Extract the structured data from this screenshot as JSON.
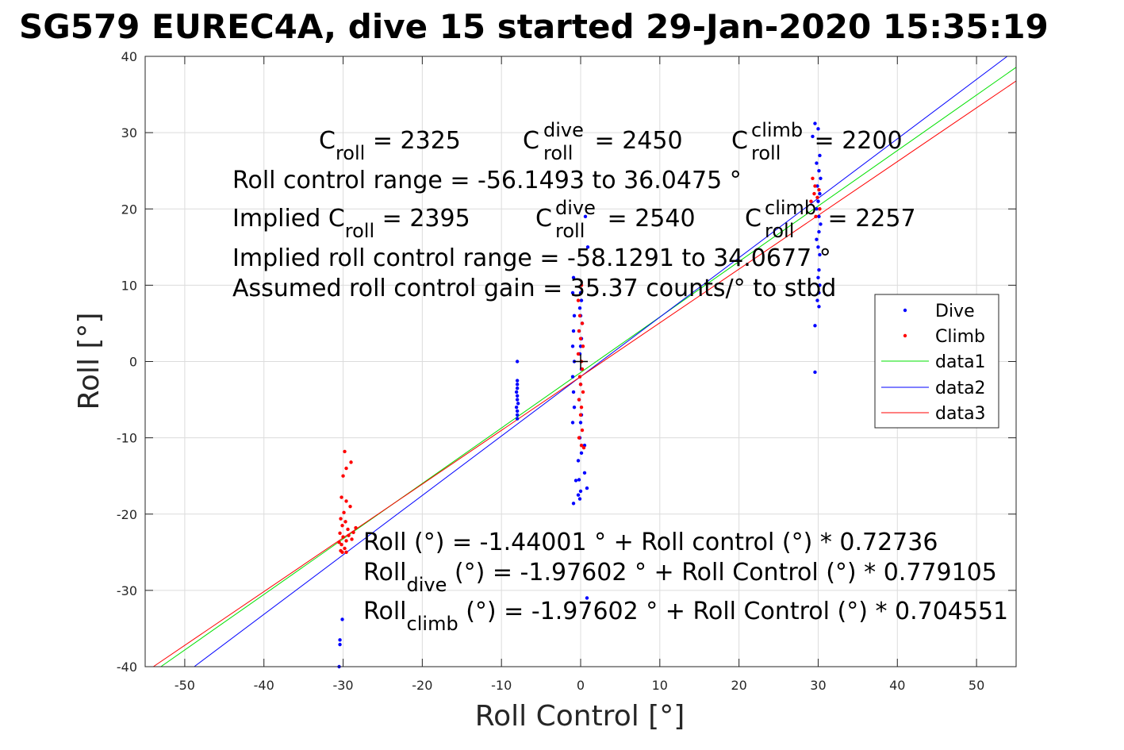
{
  "chart_data": {
    "type": "scatter",
    "title": "SG579 EUREC4A, dive 15 started 29-Jan-2020 15:35:19",
    "xlabel": "Roll Control [°]",
    "ylabel": "Roll [°]",
    "xlim": [
      -55,
      55
    ],
    "ylim": [
      -40,
      40
    ],
    "xticks": [
      -50,
      -40,
      -30,
      -20,
      -10,
      0,
      10,
      20,
      30,
      40,
      50
    ],
    "yticks": [
      -40,
      -30,
      -20,
      -10,
      0,
      10,
      20,
      30,
      40
    ],
    "grid": true,
    "legend_position": "right",
    "annotations": {
      "c_roll": {
        "pre": "C",
        "sub": "roll",
        "post": " = 2325"
      },
      "c_roll_dive": {
        "pre": "C",
        "sup": "dive",
        "sub": "roll",
        "post": " = 2450"
      },
      "c_roll_climb": {
        "pre": "C",
        "sup": "climb",
        "sub": "roll",
        "post": " = 2200"
      },
      "range": "Roll control range = -56.1493 to 36.0475 °",
      "implied_c_roll": {
        "pre": "Implied C",
        "sub": "roll",
        "post": " = 2395"
      },
      "implied_c_roll_dive": {
        "pre": "C",
        "sup": "dive",
        "sub": "roll",
        "post": " = 2540"
      },
      "implied_c_roll_climb": {
        "pre": "C",
        "sup": "climb",
        "sub": "roll",
        "post": " = 2257"
      },
      "implied_range": "Implied roll control range = -58.1291 to 34.0677 °",
      "gain": "Assumed roll control gain = 35.37 counts/° to stbd",
      "fit_all": "Roll (°) = -1.44001 ° + Roll control (°) * 0.72736",
      "fit_dive": {
        "pre": "Roll",
        "sub": "dive",
        "post": " (°) = -1.97602 ° + Roll Control (°) * 0.779105"
      },
      "fit_climb": {
        "pre": "Roll",
        "sub": "climb",
        "post": " (°) = -1.97602 ° + Roll Control (°) * 0.704551"
      }
    },
    "lines": [
      {
        "name": "data1",
        "color": "#00e000",
        "intercept": -1.44001,
        "slope": 0.72736
      },
      {
        "name": "data2",
        "color": "#0000ff",
        "intercept": -1.97602,
        "slope": 0.779105
      },
      {
        "name": "data3",
        "color": "#ff0000",
        "intercept": -1.97602,
        "slope": 0.704551
      }
    ],
    "series": [
      {
        "name": "Dive",
        "color": "#0000ff",
        "points": [
          [
            -30.1,
            -33.8
          ],
          [
            -30.4,
            -36.5
          ],
          [
            -30.4,
            -37.1
          ],
          [
            -30.5,
            -40.0
          ],
          [
            -8.0,
            0.0
          ],
          [
            -8.0,
            -2.5
          ],
          [
            -8.0,
            -3.0
          ],
          [
            -8.0,
            -3.5
          ],
          [
            -8.1,
            -4.0
          ],
          [
            -8.0,
            -4.5
          ],
          [
            -8.0,
            -5.0
          ],
          [
            -7.9,
            -5.5
          ],
          [
            -8.1,
            -6.0
          ],
          [
            -8.0,
            -6.5
          ],
          [
            -8.0,
            -7.0
          ],
          [
            -8.0,
            -7.5
          ],
          [
            -0.9,
            11.0
          ],
          [
            -1.0,
            9.0
          ],
          [
            -0.8,
            6.0
          ],
          [
            -0.9,
            4.0
          ],
          [
            -1.0,
            2.0
          ],
          [
            -0.8,
            0.0
          ],
          [
            -1.0,
            -2.0
          ],
          [
            -0.9,
            -4.0
          ],
          [
            -0.8,
            -6.0
          ],
          [
            -1.0,
            -8.0
          ],
          [
            0.0,
            9.0
          ],
          [
            0.1,
            8.0
          ],
          [
            -0.1,
            7.0
          ],
          [
            0.0,
            6.0
          ],
          [
            0.2,
            5.0
          ],
          [
            -0.2,
            4.0
          ],
          [
            0.1,
            3.0
          ],
          [
            0.0,
            2.0
          ],
          [
            -0.1,
            1.0
          ],
          [
            0.1,
            -1.0
          ],
          [
            0.0,
            -3.0
          ],
          [
            -0.2,
            -5.0
          ],
          [
            0.1,
            -7.0
          ],
          [
            0.0,
            -8.0
          ],
          [
            -0.1,
            -10.0
          ],
          [
            0.1,
            -12.0
          ],
          [
            -0.3,
            -13.0
          ],
          [
            -0.2,
            -15.5
          ],
          [
            0.0,
            -17.0
          ],
          [
            -0.1,
            -18.0
          ],
          [
            -0.9,
            -18.6
          ],
          [
            -0.3,
            -17.5
          ],
          [
            0.8,
            -16.6
          ],
          [
            0.5,
            -14.6
          ],
          [
            -0.6,
            -15.6
          ],
          [
            0.5,
            -11.0
          ],
          [
            0.9,
            15.0
          ],
          [
            0.6,
            19.0
          ],
          [
            0.8,
            -31.0
          ],
          [
            29.6,
            31.2
          ],
          [
            30.0,
            30.5
          ],
          [
            29.3,
            29.5
          ],
          [
            30.2,
            27.0
          ],
          [
            29.8,
            26.0
          ],
          [
            30.1,
            25.0
          ],
          [
            30.3,
            24.0
          ],
          [
            29.9,
            23.0
          ],
          [
            30.2,
            22.0
          ],
          [
            30.0,
            21.0
          ],
          [
            29.8,
            20.0
          ],
          [
            30.1,
            19.0
          ],
          [
            30.3,
            18.0
          ],
          [
            30.1,
            17.0
          ],
          [
            29.8,
            16.0
          ],
          [
            30.0,
            15.0
          ],
          [
            30.2,
            14.0
          ],
          [
            30.1,
            12.0
          ],
          [
            30.0,
            11.0
          ],
          [
            30.2,
            10.0
          ],
          [
            30.1,
            9.0
          ],
          [
            29.9,
            8.0
          ],
          [
            30.1,
            7.2
          ],
          [
            29.6,
            4.7
          ],
          [
            29.6,
            -1.4
          ]
        ]
      },
      {
        "name": "Climb",
        "color": "#ff0000",
        "points": [
          [
            -29.8,
            -11.8
          ],
          [
            -29.0,
            -13.2
          ],
          [
            -29.6,
            -14.0
          ],
          [
            -30.0,
            -15.0
          ],
          [
            -30.2,
            -17.8
          ],
          [
            -29.6,
            -18.3
          ],
          [
            -29.1,
            -19.0
          ],
          [
            -29.9,
            -19.8
          ],
          [
            -30.3,
            -20.6
          ],
          [
            -29.7,
            -21.0
          ],
          [
            -30.1,
            -21.5
          ],
          [
            -29.4,
            -22.0
          ],
          [
            -30.4,
            -22.5
          ],
          [
            -30.0,
            -23.0
          ],
          [
            -29.6,
            -23.5
          ],
          [
            -30.2,
            -24.0
          ],
          [
            -29.8,
            -24.5
          ],
          [
            -30.1,
            -25.0
          ],
          [
            -29.3,
            -22.8
          ],
          [
            -28.7,
            -22.4
          ],
          [
            -28.4,
            -21.8
          ],
          [
            -30.5,
            -23.7
          ],
          [
            -30.3,
            -24.8
          ],
          [
            -29.6,
            -25.0
          ],
          [
            -28.9,
            -23.3
          ],
          [
            -0.3,
            8.0
          ],
          [
            0.1,
            10.0
          ],
          [
            -0.1,
            6.0
          ],
          [
            0.2,
            5.0
          ],
          [
            -0.2,
            4.0
          ],
          [
            0.0,
            3.0
          ],
          [
            0.3,
            2.0
          ],
          [
            -0.3,
            1.0
          ],
          [
            0.1,
            0.0
          ],
          [
            0.2,
            -1.0
          ],
          [
            -0.1,
            -2.0
          ],
          [
            0.0,
            -3.0
          ],
          [
            0.3,
            -4.0
          ],
          [
            -0.2,
            -5.0
          ],
          [
            0.1,
            -6.0
          ],
          [
            0.0,
            -7.0
          ],
          [
            0.2,
            -9.0
          ],
          [
            -0.2,
            -10.0
          ],
          [
            0.1,
            -11.0
          ],
          [
            0.4,
            -11.3
          ],
          [
            29.3,
            24.0
          ],
          [
            29.6,
            23.0
          ],
          [
            29.5,
            22.0
          ],
          [
            29.9,
            21.5
          ],
          [
            30.2,
            20.0
          ],
          [
            29.7,
            19.0
          ],
          [
            29.1,
            21.0
          ],
          [
            30.1,
            22.5
          ]
        ]
      }
    ]
  }
}
